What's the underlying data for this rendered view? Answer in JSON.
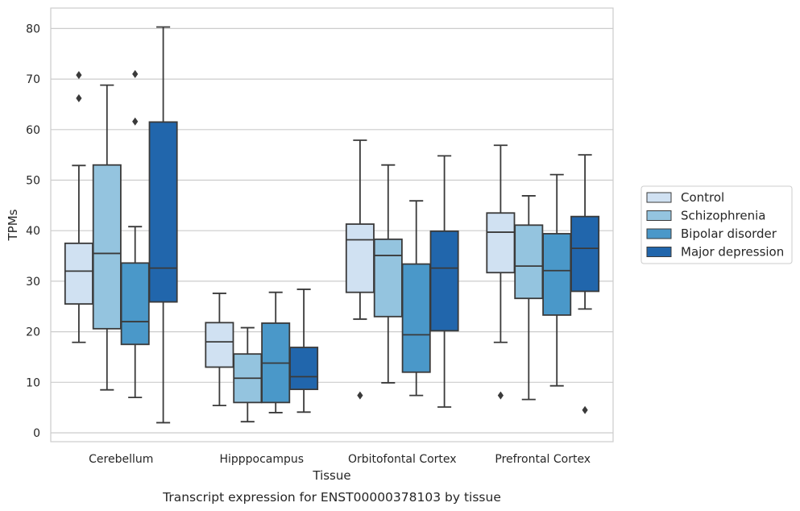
{
  "caption": "Transcript expression for ENST00000378103 by tissue",
  "chart_data": {
    "type": "box",
    "xlabel": "Tissue",
    "ylabel": "TPMs",
    "ylim": [
      -2,
      84.5
    ],
    "yticks": [
      0,
      10,
      20,
      30,
      40,
      50,
      60,
      70,
      80
    ],
    "grid": "horizontal",
    "legend_position": "right",
    "categories": [
      "Cerebellum",
      "Hipppocampus",
      "Orbitofontal Cortex",
      "Prefrontal Cortex"
    ],
    "series": [
      {
        "name": "Control",
        "color": "#d0e1f2",
        "boxes": [
          {
            "whislo": 17.9,
            "q1": 25.5,
            "med": 32.0,
            "q3": 37.5,
            "whishi": 52.9,
            "fliers": [
              66.2,
              70.8
            ]
          },
          {
            "whislo": 5.4,
            "q1": 13.0,
            "med": 18.0,
            "q3": 21.8,
            "whishi": 27.6,
            "fliers": []
          },
          {
            "whislo": 22.5,
            "q1": 27.8,
            "med": 38.2,
            "q3": 41.3,
            "whishi": 57.9,
            "fliers": [
              7.4
            ]
          },
          {
            "whislo": 17.9,
            "q1": 31.7,
            "med": 39.7,
            "q3": 43.5,
            "whishi": 56.9,
            "fliers": [
              7.4
            ]
          }
        ]
      },
      {
        "name": "Schizophrenia",
        "color": "#94c4df",
        "boxes": [
          {
            "whislo": 8.5,
            "q1": 20.6,
            "med": 35.5,
            "q3": 53.0,
            "whishi": 68.8,
            "fliers": []
          },
          {
            "whislo": 2.2,
            "q1": 6.0,
            "med": 10.8,
            "q3": 15.6,
            "whishi": 20.8,
            "fliers": []
          },
          {
            "whislo": 9.9,
            "q1": 23.0,
            "med": 35.1,
            "q3": 38.3,
            "whishi": 53.0,
            "fliers": []
          },
          {
            "whislo": 6.6,
            "q1": 26.6,
            "med": 33.0,
            "q3": 41.1,
            "whishi": 46.9,
            "fliers": []
          }
        ]
      },
      {
        "name": "Bipolar disorder",
        "color": "#4a98c9",
        "boxes": [
          {
            "whislo": 7.0,
            "q1": 17.5,
            "med": 22.0,
            "q3": 33.6,
            "whishi": 40.8,
            "fliers": [
              61.6,
              71.0
            ]
          },
          {
            "whislo": 4.0,
            "q1": 6.0,
            "med": 13.8,
            "q3": 21.7,
            "whishi": 27.8,
            "fliers": []
          },
          {
            "whislo": 7.4,
            "q1": 12.0,
            "med": 19.4,
            "q3": 33.4,
            "whishi": 45.9,
            "fliers": []
          },
          {
            "whislo": 9.3,
            "q1": 23.3,
            "med": 32.1,
            "q3": 39.4,
            "whishi": 51.1,
            "fliers": []
          }
        ]
      },
      {
        "name": "Major depression",
        "color": "#2166ac",
        "boxes": [
          {
            "whislo": 2.0,
            "q1": 25.9,
            "med": 32.6,
            "q3": 61.5,
            "whishi": 80.3,
            "fliers": []
          },
          {
            "whislo": 4.1,
            "q1": 8.6,
            "med": 11.1,
            "q3": 16.9,
            "whishi": 28.4,
            "fliers": []
          },
          {
            "whislo": 5.1,
            "q1": 20.2,
            "med": 32.6,
            "q3": 39.9,
            "whishi": 54.8,
            "fliers": []
          },
          {
            "whislo": 24.5,
            "q1": 28.0,
            "med": 36.5,
            "q3": 42.8,
            "whishi": 55.0,
            "fliers": [
              4.5
            ]
          }
        ]
      }
    ]
  }
}
